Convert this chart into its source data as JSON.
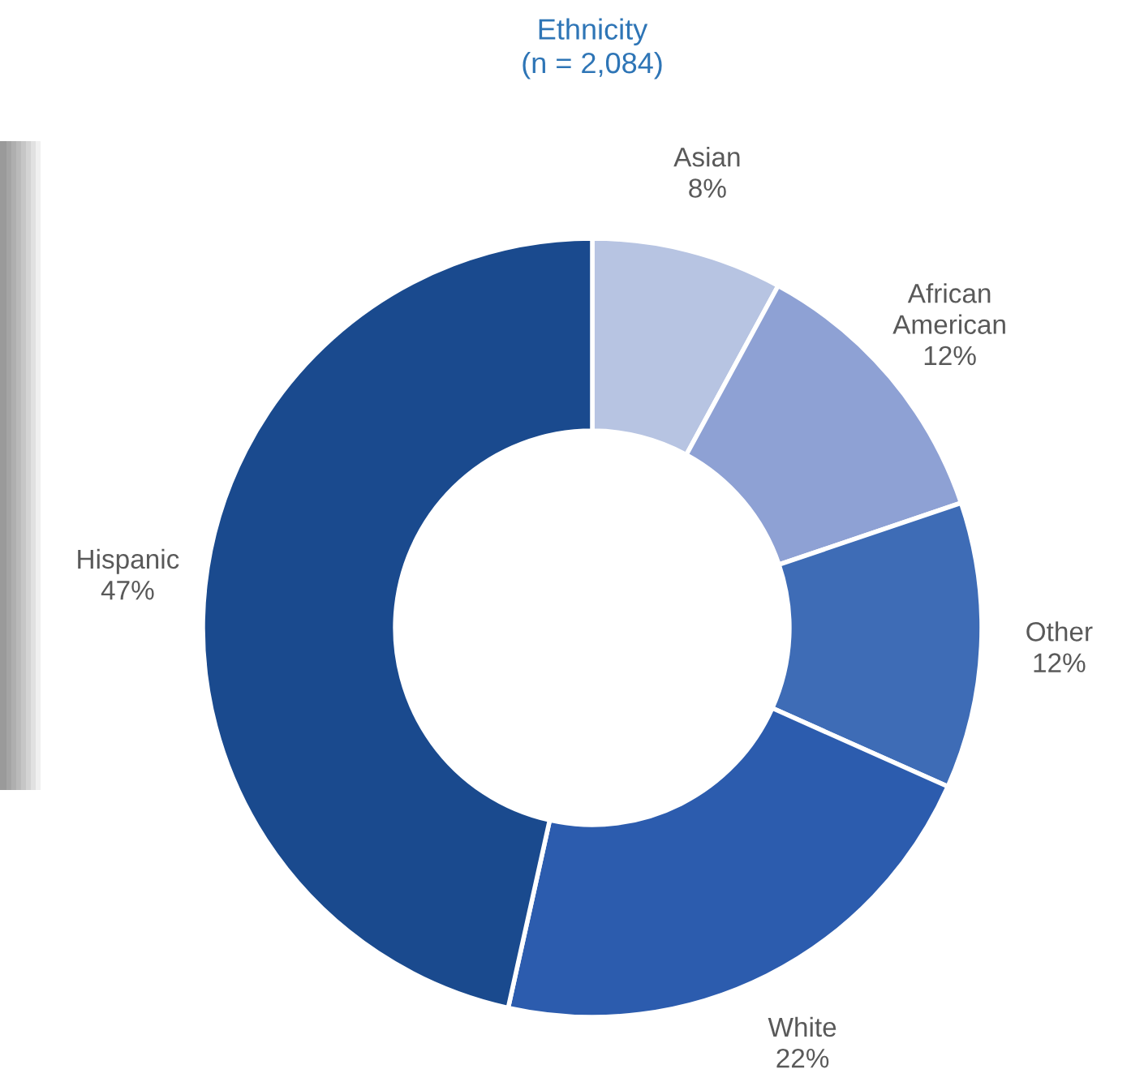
{
  "chart_data": {
    "type": "donut",
    "title": "Ethnicity\n(n = 2,084)",
    "categories": [
      "Asian",
      "African\nAmerican",
      "Other",
      "White",
      "Hispanic"
    ],
    "values": [
      8,
      12,
      12,
      22,
      47
    ],
    "value_labels": [
      "8%",
      "12%",
      "12%",
      "22%",
      "47%"
    ],
    "colors": [
      "#b7c4e2",
      "#8ea1d4",
      "#3e6cb6",
      "#2c5cae",
      "#1a4a8e"
    ],
    "legend": false
  }
}
